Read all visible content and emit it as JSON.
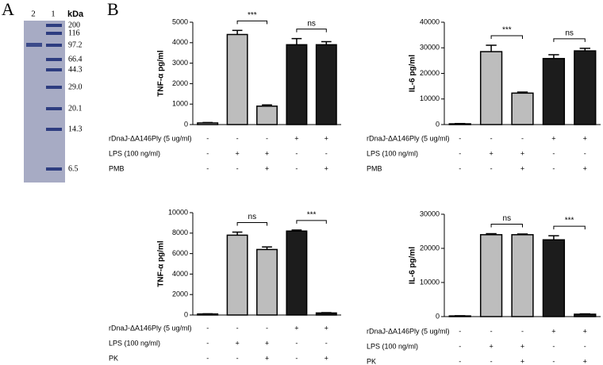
{
  "panel_labels": [
    "A",
    "B"
  ],
  "gel": {
    "lanes": [
      "2",
      "1"
    ],
    "unit": "kDa",
    "markers": [
      "200",
      "116",
      "97.2",
      "66.4",
      "44.3",
      "29.0",
      "20.1",
      "14.3",
      "6.5"
    ]
  },
  "chart_data": [
    {
      "type": "bar",
      "ylabel": "TNF-α pg/ml",
      "values": [
        80,
        4400,
        900,
        3900,
        3900
      ],
      "errors": [
        20,
        200,
        60,
        300,
        150
      ],
      "colors": [
        "#bdbdbd",
        "#bdbdbd",
        "#bdbdbd",
        "#1c1c1c",
        "#1c1c1c"
      ],
      "ylim": [
        0,
        5000
      ],
      "yticks": [
        0,
        1000,
        2000,
        3000,
        4000,
        5000
      ],
      "annotations": [
        {
          "text": "***",
          "from": 1,
          "to": 2
        },
        {
          "text": "ns",
          "from": 3,
          "to": 4
        }
      ],
      "conditions": [
        {
          "label": "rDnaJ-ΔA146Ply (5 ug/ml)",
          "signs": [
            "-",
            "-",
            "-",
            "+",
            "+"
          ]
        },
        {
          "label": "LPS (100 ng/ml)",
          "signs": [
            "-",
            "+",
            "+",
            "-",
            "-"
          ]
        },
        {
          "label": "PMB",
          "signs": [
            "-",
            "-",
            "+",
            "-",
            "+"
          ]
        }
      ]
    },
    {
      "type": "bar",
      "ylabel": "IL-6 pg/ml",
      "values": [
        300,
        28500,
        12300,
        25800,
        28800
      ],
      "errors": [
        100,
        2500,
        400,
        1500,
        1000
      ],
      "colors": [
        "#bdbdbd",
        "#bdbdbd",
        "#bdbdbd",
        "#1c1c1c",
        "#1c1c1c"
      ],
      "ylim": [
        0,
        40000
      ],
      "yticks": [
        0,
        10000,
        20000,
        30000,
        40000
      ],
      "annotations": [
        {
          "text": "***",
          "from": 1,
          "to": 2
        },
        {
          "text": "ns",
          "from": 3,
          "to": 4
        }
      ],
      "conditions": [
        {
          "label": "rDnaJ-ΔA146Ply (5 ug/ml)",
          "signs": [
            "-",
            "-",
            "-",
            "+",
            "+"
          ]
        },
        {
          "label": "LPS (100 ng/ml)",
          "signs": [
            "-",
            "+",
            "+",
            "-",
            "-"
          ]
        },
        {
          "label": "PMB",
          "signs": [
            "-",
            "-",
            "+",
            "-",
            "+"
          ]
        }
      ]
    },
    {
      "type": "bar",
      "ylabel": "TNF-α pg/ml",
      "values": [
        100,
        7800,
        6400,
        8200,
        200
      ],
      "errors": [
        20,
        300,
        250,
        100,
        30
      ],
      "colors": [
        "#bdbdbd",
        "#bdbdbd",
        "#bdbdbd",
        "#1c1c1c",
        "#1c1c1c"
      ],
      "ylim": [
        0,
        10000
      ],
      "yticks": [
        0,
        2000,
        4000,
        6000,
        8000,
        10000
      ],
      "annotations": [
        {
          "text": "ns",
          "from": 1,
          "to": 2
        },
        {
          "text": "***",
          "from": 3,
          "to": 4
        }
      ],
      "conditions": [
        {
          "label": "rDnaJ-ΔA146Ply (5 ug/ml)",
          "signs": [
            "-",
            "-",
            "-",
            "+",
            "+"
          ]
        },
        {
          "label": "LPS (100 ng/ml)",
          "signs": [
            "-",
            "+",
            "+",
            "-",
            "-"
          ]
        },
        {
          "label": "PK",
          "signs": [
            "-",
            "-",
            "+",
            "-",
            "+"
          ]
        }
      ]
    },
    {
      "type": "bar",
      "ylabel": "IL-6 pg/ml",
      "values": [
        200,
        24000,
        24000,
        22500,
        700
      ],
      "errors": [
        50,
        300,
        200,
        1200,
        100
      ],
      "colors": [
        "#bdbdbd",
        "#bdbdbd",
        "#bdbdbd",
        "#1c1c1c",
        "#1c1c1c"
      ],
      "ylim": [
        0,
        30000
      ],
      "yticks": [
        0,
        10000,
        20000,
        30000
      ],
      "annotations": [
        {
          "text": "ns",
          "from": 1,
          "to": 2
        },
        {
          "text": "***",
          "from": 3,
          "to": 4
        }
      ],
      "conditions": [
        {
          "label": "rDnaJ-ΔA146Ply (5 ug/ml)",
          "signs": [
            "-",
            "-",
            "-",
            "+",
            "+"
          ]
        },
        {
          "label": "LPS (100 ng/ml)",
          "signs": [
            "-",
            "+",
            "+",
            "-",
            "-"
          ]
        },
        {
          "label": "PK",
          "signs": [
            "-",
            "-",
            "+",
            "-",
            "+"
          ]
        }
      ]
    }
  ]
}
